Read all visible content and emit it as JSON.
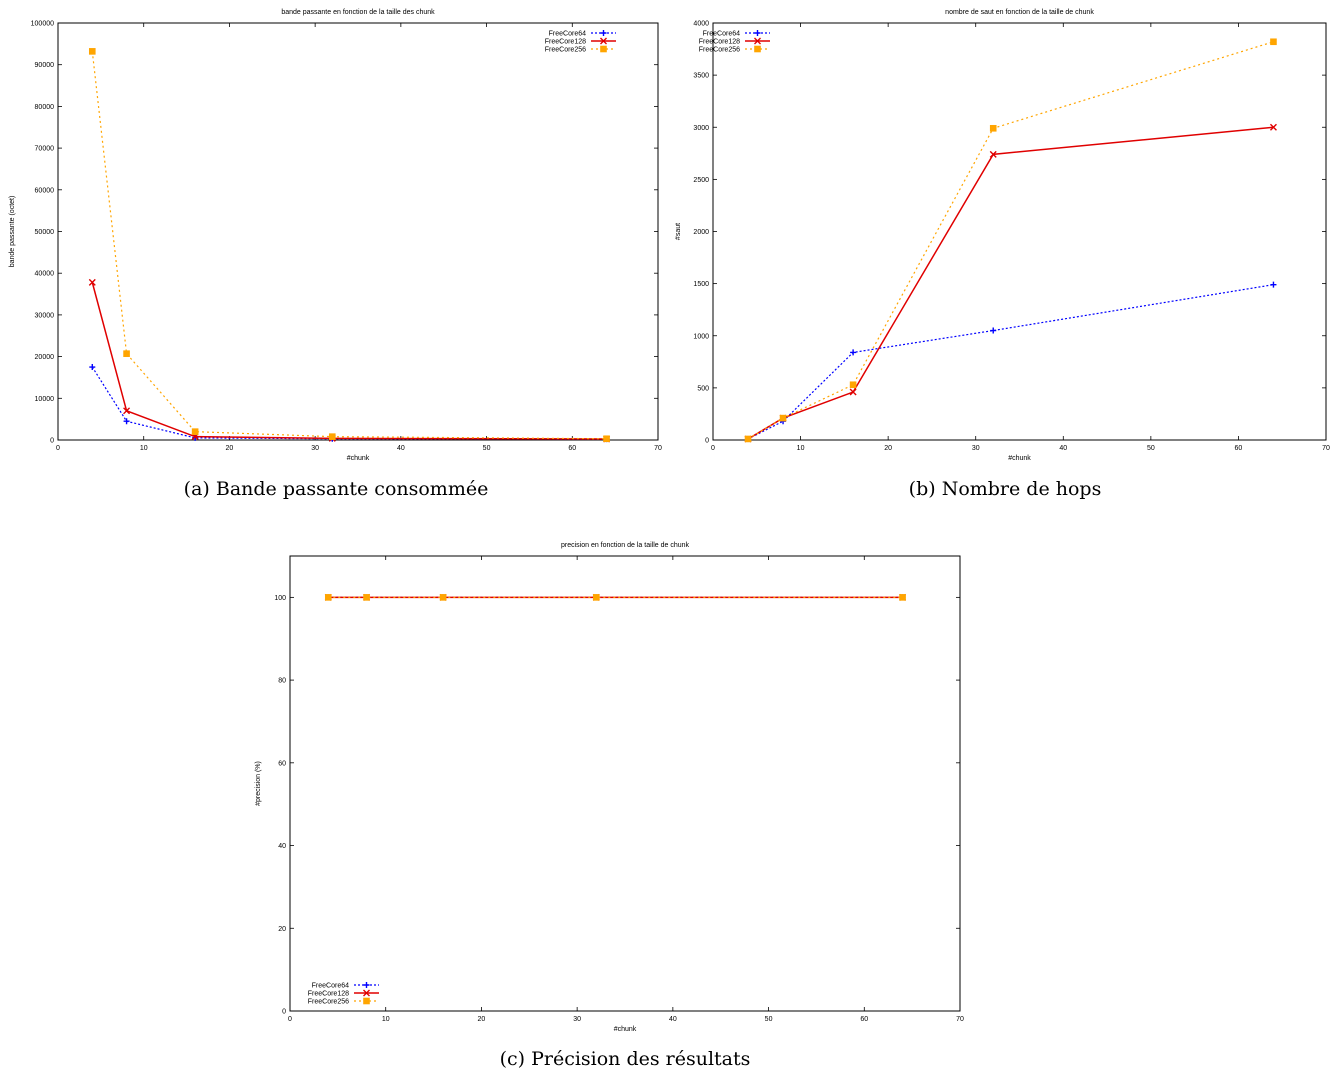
{
  "captions": [
    "(a) Bande passante consommée",
    "(b) Nombre de hops",
    "(c) Précision des résultats"
  ],
  "colors": {
    "FreeCore64": "#0000ff",
    "FreeCore128": "#e00000",
    "FreeCore256": "#ffa500"
  },
  "chart_data": [
    {
      "type": "line",
      "title": "bande passante en fonction de la taille des chunk",
      "xlabel": "#chunk",
      "ylabel": "bande passante (octet)",
      "xlim": [
        0,
        70
      ],
      "ylim": [
        0,
        100000
      ],
      "xticks": [
        0,
        10,
        20,
        30,
        40,
        50,
        60,
        70
      ],
      "yticks": [
        0,
        10000,
        20000,
        30000,
        40000,
        50000,
        60000,
        70000,
        80000,
        90000,
        100000
      ],
      "legend_position": "top-right",
      "x": [
        4,
        8,
        16,
        32,
        64
      ],
      "series": [
        {
          "name": "FreeCore64",
          "values": [
            17500,
            4500,
            500,
            300,
            200
          ]
        },
        {
          "name": "FreeCore128",
          "values": [
            37800,
            7000,
            800,
            400,
            250
          ]
        },
        {
          "name": "FreeCore256",
          "values": [
            93200,
            20700,
            2000,
            800,
            300
          ]
        }
      ]
    },
    {
      "type": "line",
      "title": "nombre de saut en fonction de la taille de chunk",
      "xlabel": "#chunk",
      "ylabel": "#saut",
      "xlim": [
        0,
        70
      ],
      "ylim": [
        0,
        4000
      ],
      "xticks": [
        0,
        10,
        20,
        30,
        40,
        50,
        60,
        70
      ],
      "yticks": [
        0,
        500,
        1000,
        1500,
        2000,
        2500,
        3000,
        3500,
        4000
      ],
      "legend_position": "top-left",
      "x": [
        4,
        8,
        16,
        32,
        64
      ],
      "series": [
        {
          "name": "FreeCore64",
          "values": [
            10,
            180,
            840,
            1050,
            1490
          ]
        },
        {
          "name": "FreeCore128",
          "values": [
            10,
            210,
            460,
            2740,
            3000
          ]
        },
        {
          "name": "FreeCore256",
          "values": [
            10,
            210,
            530,
            2990,
            3820
          ]
        }
      ]
    },
    {
      "type": "line",
      "title": "precision en fonction de la taille de chunk",
      "xlabel": "#chunk",
      "ylabel": "#precision (%)",
      "xlim": [
        0,
        70
      ],
      "ylim": [
        0,
        110
      ],
      "xticks": [
        0,
        10,
        20,
        30,
        40,
        50,
        60,
        70
      ],
      "yticks": [
        0,
        20,
        40,
        60,
        80,
        100
      ],
      "legend_position": "bottom-left",
      "x": [
        4,
        8,
        16,
        32,
        64
      ],
      "series": [
        {
          "name": "FreeCore64",
          "values": [
            100,
            100,
            100,
            100,
            100
          ]
        },
        {
          "name": "FreeCore128",
          "values": [
            100,
            100,
            100,
            100,
            100
          ]
        },
        {
          "name": "FreeCore256",
          "values": [
            100,
            100,
            100,
            100,
            100
          ]
        }
      ]
    }
  ]
}
